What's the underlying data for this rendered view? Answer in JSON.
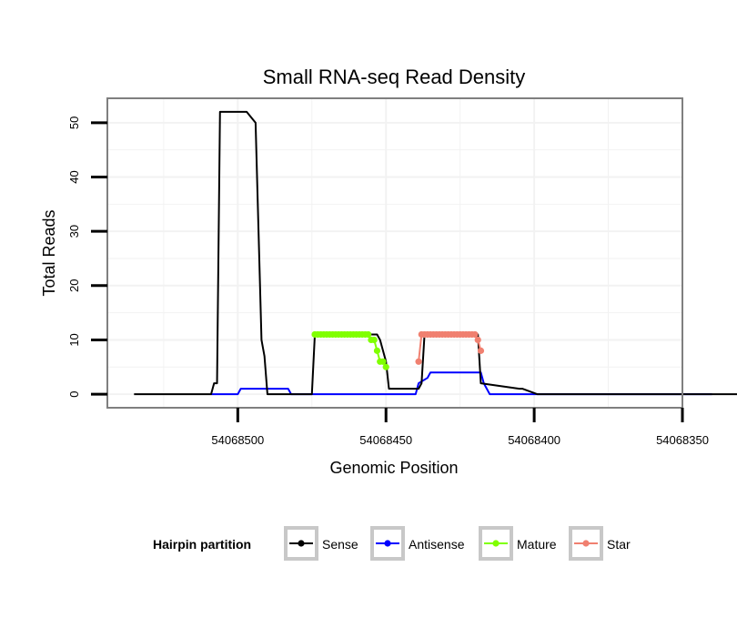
{
  "chart_data": {
    "type": "line",
    "title": "Small RNA-seq Read Density",
    "xlabel": "Genomic Position",
    "ylabel": "Total Reads",
    "x_reversed": true,
    "xlim": [
      54068544,
      54068350
    ],
    "ylim": [
      -2.5,
      54.5
    ],
    "x_ticks": [
      54068500,
      54068450,
      54068400,
      54068350
    ],
    "x_tick_labels": [
      "54068500",
      "54068450",
      "54068400",
      "54068350"
    ],
    "y_ticks": [
      0,
      10,
      20,
      30,
      40,
      50
    ],
    "y_tick_labels": [
      "0",
      "10",
      "20",
      "30",
      "40",
      "50"
    ],
    "grid": true,
    "legend": {
      "title": "Hairpin partition",
      "placement": "bottom",
      "entries": [
        "Sense",
        "Antisense",
        "Mature",
        "Star"
      ]
    },
    "series": [
      {
        "name": "Sense",
        "color": "#000000",
        "markers": false,
        "x": [
          54068535,
          54068509,
          54068508,
          54068507,
          54068506,
          54068497,
          54068494,
          54068492,
          54068491,
          54068490,
          54068489,
          54068475,
          54068474,
          54068467,
          54068453,
          54068452,
          54068450,
          54068449,
          54068439,
          54068438,
          54068437,
          54068419,
          54068418,
          54068405,
          54068404,
          54068399,
          54068331
        ],
        "y": [
          0,
          0,
          2,
          2,
          52,
          52,
          50,
          10,
          7,
          0,
          0,
          0,
          11,
          11,
          11,
          10,
          6,
          1,
          1,
          2,
          11,
          11,
          2,
          1,
          1,
          0,
          0
        ]
      },
      {
        "name": "Antisense",
        "color": "#0000ff",
        "markers": false,
        "x": [
          54068509,
          54068500,
          54068499,
          54068483,
          54068482,
          54068440,
          54068439,
          54068436,
          54068435,
          54068418,
          54068417,
          54068416,
          54068415,
          54068340
        ],
        "y": [
          0,
          0,
          1,
          1,
          0,
          0,
          2,
          3,
          4,
          4,
          2,
          1,
          0,
          0
        ]
      },
      {
        "name": "Mature",
        "color": "#80ff00",
        "markers": true,
        "x": [
          54068474,
          54068473,
          54068472,
          54068471,
          54068470,
          54068469,
          54068468,
          54068467,
          54068466,
          54068465,
          54068464,
          54068463,
          54068462,
          54068461,
          54068460,
          54068459,
          54068458,
          54068457,
          54068456,
          54068455,
          54068454,
          54068453,
          54068452,
          54068451,
          54068450
        ],
        "y": [
          11,
          11,
          11,
          11,
          11,
          11,
          11,
          11,
          11,
          11,
          11,
          11,
          11,
          11,
          11,
          11,
          11,
          11,
          11,
          10,
          10,
          8,
          6,
          6,
          5
        ]
      },
      {
        "name": "Star",
        "color": "#f08070",
        "markers": true,
        "x": [
          54068439,
          54068438,
          54068437,
          54068436,
          54068435,
          54068434,
          54068433,
          54068432,
          54068431,
          54068430,
          54068429,
          54068428,
          54068427,
          54068426,
          54068425,
          54068424,
          54068423,
          54068422,
          54068421,
          54068420,
          54068419,
          54068418
        ],
        "y": [
          6,
          11,
          11,
          11,
          11,
          11,
          11,
          11,
          11,
          11,
          11,
          11,
          11,
          11,
          11,
          11,
          11,
          11,
          11,
          11,
          10,
          8
        ]
      }
    ]
  }
}
